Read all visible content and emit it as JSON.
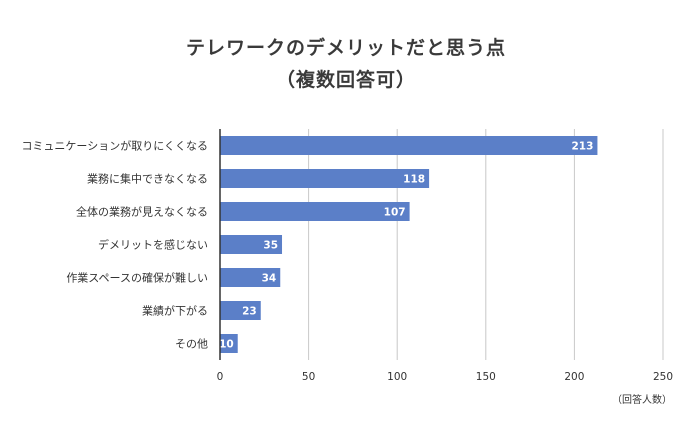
{
  "title_line1": "テレワークのデメリットだと思う点",
  "title_line2": "（複数回答可）",
  "unit_note": "（回答人数）",
  "colors": {
    "bar": "#5b7fc8",
    "grid": "#c8c8c8",
    "axis": "#333333"
  },
  "chart_data": {
    "type": "bar",
    "orientation": "horizontal",
    "title": "テレワークのデメリットだと思う点（複数回答可）",
    "categories": [
      "コミュニケーションが取りにくくなる",
      "業務に集中できなくなる",
      "全体の業務が見えなくなる",
      "デメリットを感じない",
      "作業スペースの確保が難しい",
      "業績が下がる",
      "その他"
    ],
    "values": [
      213,
      118,
      107,
      35,
      34,
      23,
      10
    ],
    "xlim": [
      0,
      250
    ],
    "xticks": [
      0,
      50,
      100,
      150,
      200,
      250
    ],
    "xlabel": "（回答人数）",
    "grid": true,
    "legend": "none"
  }
}
